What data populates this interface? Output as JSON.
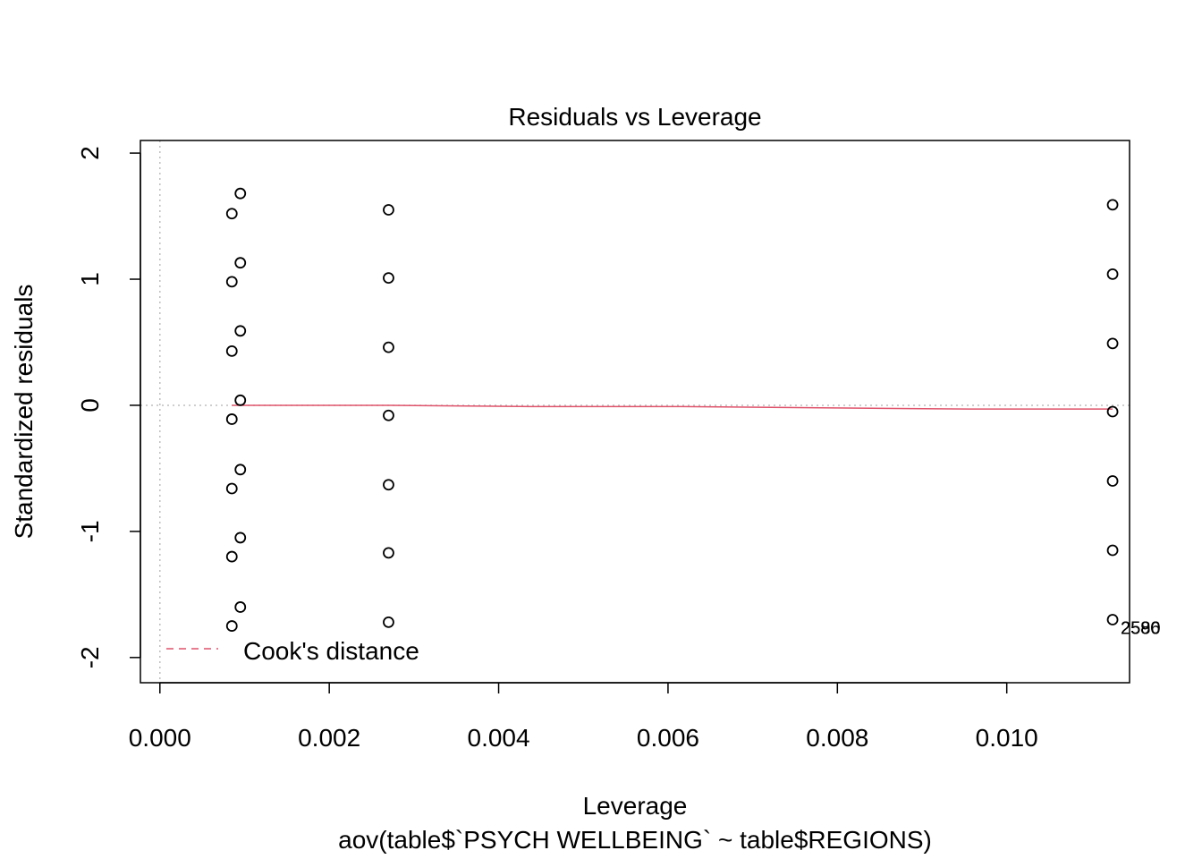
{
  "chart_data": {
    "type": "scatter",
    "title": "Residuals vs Leverage",
    "xlabel": "Leverage",
    "subtitle": "aov(table$`PSYCH WELLBEING` ~ table$REGIONS)",
    "ylabel": "Standardized residuals",
    "xlim": [
      -0.00023,
      0.01145
    ],
    "ylim": [
      -2.2,
      2.1
    ],
    "x_ticks": [
      0.0,
      0.002,
      0.004,
      0.006,
      0.008,
      0.01
    ],
    "x_tick_labels": [
      "0.000",
      "0.002",
      "0.004",
      "0.006",
      "0.008",
      "0.010"
    ],
    "y_ticks": [
      -2,
      -1,
      0,
      1,
      2
    ],
    "y_tick_labels": [
      "-2",
      "-1",
      "0",
      "1",
      "2"
    ],
    "grid": false,
    "reference_lines": {
      "x": 0,
      "y": 0,
      "style": "dotted",
      "color": "#bebebe"
    },
    "series": [
      {
        "points": [
          {
            "x": 0.00085,
            "y": 1.52
          },
          {
            "x": 0.00085,
            "y": 0.98
          },
          {
            "x": 0.00085,
            "y": 0.43
          },
          {
            "x": 0.00085,
            "y": -0.11
          },
          {
            "x": 0.00085,
            "y": -0.66
          },
          {
            "x": 0.00085,
            "y": -1.2
          },
          {
            "x": 0.00085,
            "y": -1.75
          },
          {
            "x": 0.00095,
            "y": 1.68
          },
          {
            "x": 0.00095,
            "y": 1.13
          },
          {
            "x": 0.00095,
            "y": 0.59
          },
          {
            "x": 0.00095,
            "y": 0.04
          },
          {
            "x": 0.00095,
            "y": -0.51
          },
          {
            "x": 0.00095,
            "y": -1.05
          },
          {
            "x": 0.00095,
            "y": -1.6
          },
          {
            "x": 0.0027,
            "y": 1.55
          },
          {
            "x": 0.0027,
            "y": 1.01
          },
          {
            "x": 0.0027,
            "y": 0.46
          },
          {
            "x": 0.0027,
            "y": -0.08
          },
          {
            "x": 0.0027,
            "y": -0.63
          },
          {
            "x": 0.0027,
            "y": -1.17
          },
          {
            "x": 0.0027,
            "y": -1.72
          },
          {
            "x": 0.01125,
            "y": 1.59
          },
          {
            "x": 0.01125,
            "y": 1.04
          },
          {
            "x": 0.01125,
            "y": 0.49
          },
          {
            "x": 0.01125,
            "y": -0.05
          },
          {
            "x": 0.01125,
            "y": -0.6
          },
          {
            "x": 0.01125,
            "y": -1.15
          },
          {
            "x": 0.01125,
            "y": -1.7
          }
        ]
      }
    ],
    "smooth_line": {
      "color": "#DF536B",
      "points": [
        {
          "x": 0.00085,
          "y": 0.0
        },
        {
          "x": 0.0027,
          "y": 0.0
        },
        {
          "x": 0.0044,
          "y": -0.01
        },
        {
          "x": 0.0061,
          "y": -0.01
        },
        {
          "x": 0.0078,
          "y": -0.02
        },
        {
          "x": 0.00955,
          "y": -0.03
        },
        {
          "x": 0.01125,
          "y": -0.03
        }
      ]
    },
    "point_labels": [
      {
        "x": 0.01125,
        "y": -1.7,
        "text": "2580"
      },
      {
        "x": 0.01125,
        "y": -1.7,
        "text": "2586"
      },
      {
        "x": 0.01125,
        "y": -1.7,
        "text": "2590"
      }
    ],
    "legend": {
      "position": "bottom-left",
      "entries": [
        {
          "label": "Cook's distance",
          "color": "#DF536B",
          "line": "dashed"
        }
      ]
    }
  }
}
